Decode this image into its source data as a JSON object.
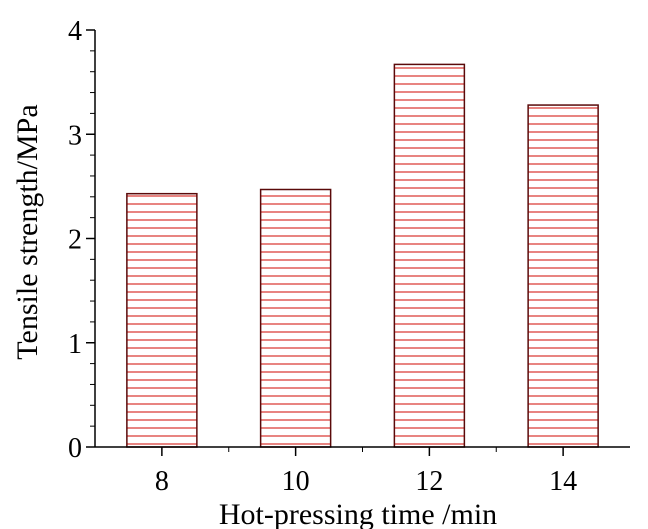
{
  "chart_data": {
    "type": "bar",
    "title": "",
    "xlabel": "Hot-pressing time /min",
    "ylabel": "Tensile strength/MPa",
    "categories": [
      "8",
      "10",
      "12",
      "14"
    ],
    "values": [
      2.43,
      2.47,
      3.67,
      3.28
    ],
    "ylim": [
      0,
      4
    ],
    "yticks": [
      "0",
      "1",
      "2",
      "3",
      "4"
    ],
    "grid": false,
    "legend": "none",
    "bar_fill": "horizontal-hatch",
    "colors": {
      "bar_outline": "#5a0a0a",
      "hatch": "#d9302c",
      "axis": "#000000"
    }
  }
}
